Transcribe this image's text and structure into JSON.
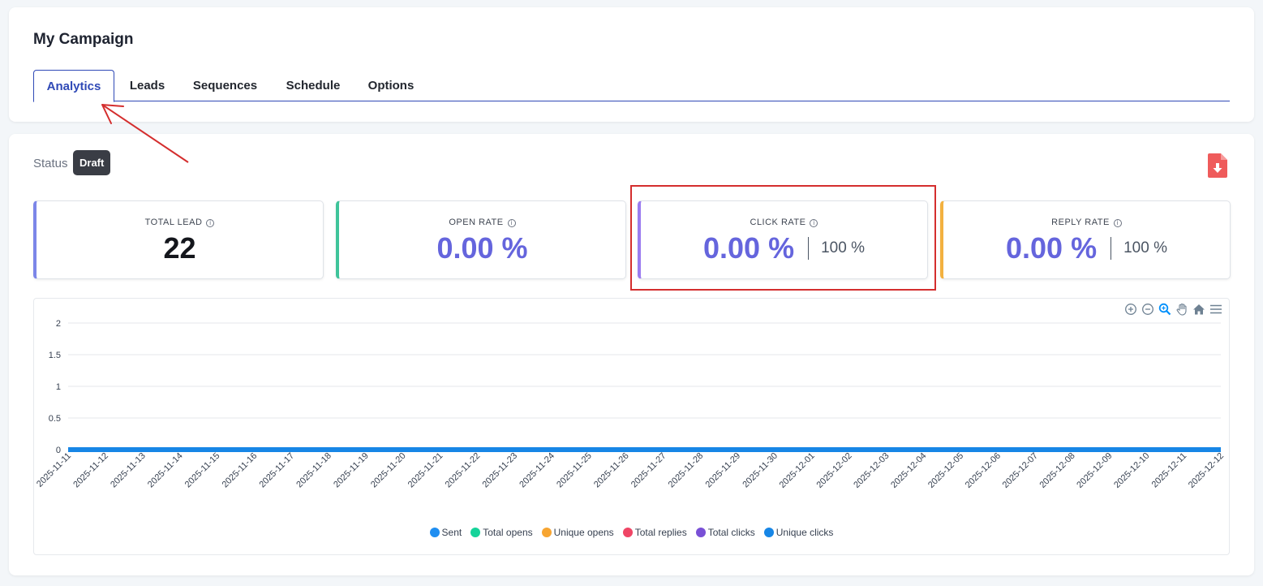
{
  "header": {
    "title": "My Campaign"
  },
  "tabs": [
    {
      "label": "Analytics",
      "active": true
    },
    {
      "label": "Leads"
    },
    {
      "label": "Sequences"
    },
    {
      "label": "Schedule"
    },
    {
      "label": "Options"
    }
  ],
  "status": {
    "label": "Status",
    "badge": "Draft"
  },
  "metrics": [
    {
      "label": "TOTAL LEAD",
      "value": "22",
      "accent": "#7c86e8"
    },
    {
      "label": "OPEN RATE",
      "value": "0.00 %",
      "accent": "#3fc49a"
    },
    {
      "label": "CLICK RATE",
      "value": "0.00 %",
      "secondary": "100 %",
      "accent": "#9b7cf0"
    },
    {
      "label": "REPLY RATE",
      "value": "0.00 %",
      "secondary": "100 %",
      "accent": "#f3b13f"
    }
  ],
  "toolbar_icons": [
    "zoom-in-icon",
    "zoom-out-icon",
    "zoom-select-icon",
    "pan-hand-icon",
    "reset-home-icon",
    "menu-icon"
  ],
  "chart_data": {
    "type": "line",
    "x": [
      "2025-11-11",
      "2025-11-12",
      "2025-11-13",
      "2025-11-14",
      "2025-11-15",
      "2025-11-16",
      "2025-11-17",
      "2025-11-18",
      "2025-11-19",
      "2025-11-20",
      "2025-11-21",
      "2025-11-22",
      "2025-11-23",
      "2025-11-24",
      "2025-11-25",
      "2025-11-26",
      "2025-11-27",
      "2025-11-28",
      "2025-11-29",
      "2025-11-30",
      "2025-12-01",
      "2025-12-02",
      "2025-12-03",
      "2025-12-04",
      "2025-12-05",
      "2025-12-06",
      "2025-12-07",
      "2025-12-08",
      "2025-12-09",
      "2025-12-10",
      "2025-12-11",
      "2025-12-12"
    ],
    "yticks": [
      "2",
      "1.5",
      "1",
      "0.5",
      "0"
    ],
    "ylim": [
      0,
      2
    ],
    "grid": true,
    "legend_position": "bottom",
    "series": [
      {
        "name": "Sent",
        "color": "#1f8ef1",
        "values": [
          0,
          0,
          0,
          0,
          0,
          0,
          0,
          0,
          0,
          0,
          0,
          0,
          0,
          0,
          0,
          0,
          0,
          0,
          0,
          0,
          0,
          0,
          0,
          0,
          0,
          0,
          0,
          0,
          0,
          0,
          0,
          0
        ]
      },
      {
        "name": "Total opens",
        "color": "#16d39a",
        "values": [
          0,
          0,
          0,
          0,
          0,
          0,
          0,
          0,
          0,
          0,
          0,
          0,
          0,
          0,
          0,
          0,
          0,
          0,
          0,
          0,
          0,
          0,
          0,
          0,
          0,
          0,
          0,
          0,
          0,
          0,
          0,
          0
        ]
      },
      {
        "name": "Unique opens",
        "color": "#f7a531",
        "values": [
          0,
          0,
          0,
          0,
          0,
          0,
          0,
          0,
          0,
          0,
          0,
          0,
          0,
          0,
          0,
          0,
          0,
          0,
          0,
          0,
          0,
          0,
          0,
          0,
          0,
          0,
          0,
          0,
          0,
          0,
          0,
          0
        ]
      },
      {
        "name": "Total replies",
        "color": "#ef4565",
        "values": [
          0,
          0,
          0,
          0,
          0,
          0,
          0,
          0,
          0,
          0,
          0,
          0,
          0,
          0,
          0,
          0,
          0,
          0,
          0,
          0,
          0,
          0,
          0,
          0,
          0,
          0,
          0,
          0,
          0,
          0,
          0,
          0
        ]
      },
      {
        "name": "Total clicks",
        "color": "#7950d6",
        "values": [
          0,
          0,
          0,
          0,
          0,
          0,
          0,
          0,
          0,
          0,
          0,
          0,
          0,
          0,
          0,
          0,
          0,
          0,
          0,
          0,
          0,
          0,
          0,
          0,
          0,
          0,
          0,
          0,
          0,
          0,
          0,
          0
        ]
      },
      {
        "name": "Unique clicks",
        "color": "#1786e6",
        "values": [
          0,
          0,
          0,
          0,
          0,
          0,
          0,
          0,
          0,
          0,
          0,
          0,
          0,
          0,
          0,
          0,
          0,
          0,
          0,
          0,
          0,
          0,
          0,
          0,
          0,
          0,
          0,
          0,
          0,
          0,
          0,
          0
        ]
      }
    ]
  }
}
